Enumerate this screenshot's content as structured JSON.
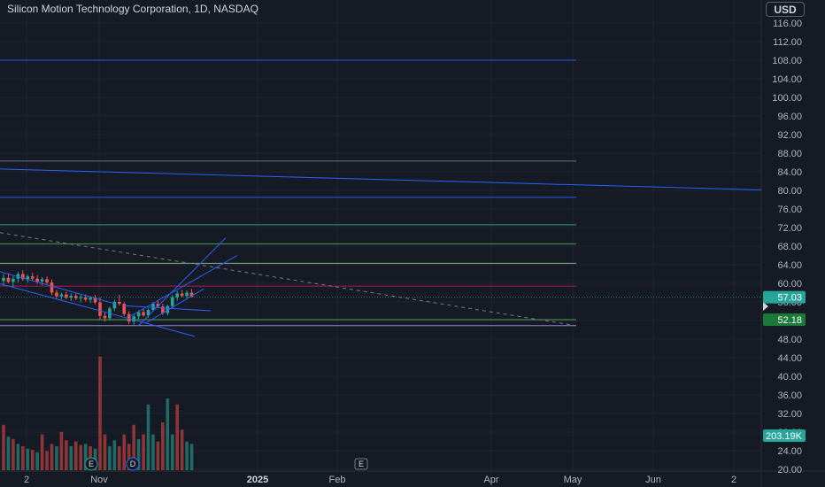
{
  "header": {
    "title": "Silicon Motion Technology Corporation, 1D, NASDAQ",
    "currency_button": "USD"
  },
  "chart_data": {
    "type": "candlestick",
    "symbol": "Silicon Motion Technology Corporation",
    "interval": "1D",
    "exchange": "NASDAQ",
    "y_ticks": [
      "116.00",
      "112.00",
      "108.00",
      "104.00",
      "100.00",
      "96.00",
      "92.00",
      "88.00",
      "84.00",
      "80.00",
      "76.00",
      "72.00",
      "68.00",
      "64.00",
      "60.00",
      "56.00",
      "52.00",
      "48.00",
      "44.00",
      "40.00",
      "36.00",
      "32.00",
      "28.00",
      "24.00",
      "20.00"
    ],
    "y_range": [
      20,
      117
    ],
    "x_ticks": [
      {
        "label": "2",
        "bold": false
      },
      {
        "label": "Nov",
        "bold": false
      },
      {
        "label": "2025",
        "bold": true
      },
      {
        "label": "Feb",
        "bold": false
      },
      {
        "label": "Apr",
        "bold": false
      },
      {
        "label": "May",
        "bold": false
      },
      {
        "label": "Jun",
        "bold": false
      },
      {
        "label": "2",
        "bold": false
      }
    ],
    "last_price": {
      "label": "57.03",
      "value": 57.03,
      "color": "#26a69a"
    },
    "level_tag": {
      "label": "52.18",
      "value": 52.18,
      "color": "#1b7a3a"
    },
    "volume_tag": {
      "label": "203.19K",
      "color": "#26a69a"
    },
    "horizontal_levels": [
      {
        "price": 108.0,
        "color": "#2962ff"
      },
      {
        "price": 86.3,
        "color": "#787b86"
      },
      {
        "price": 78.5,
        "color": "#2962ff"
      },
      {
        "price": 72.6,
        "color": "#26a69a"
      },
      {
        "price": 68.5,
        "color": "#4caf50"
      },
      {
        "price": 64.3,
        "color": "#81c784"
      },
      {
        "price": 59.4,
        "color": "#c2185b"
      },
      {
        "price": 52.18,
        "color": "#4caf50"
      },
      {
        "price": 50.9,
        "color": "#9c8fd8"
      }
    ],
    "events": [
      {
        "label": "E",
        "date": "Oct 29"
      },
      {
        "label": "D",
        "date": "Nov 14"
      },
      {
        "label": "E",
        "date": "Feb"
      }
    ],
    "candles": [
      {
        "o": 60.5,
        "h": 62.0,
        "l": 59.5,
        "c": 61.2
      },
      {
        "o": 61.2,
        "h": 62.2,
        "l": 60.0,
        "c": 60.3
      },
      {
        "o": 60.3,
        "h": 61.5,
        "l": 59.2,
        "c": 61.0
      },
      {
        "o": 61.0,
        "h": 62.5,
        "l": 60.2,
        "c": 62.0
      },
      {
        "o": 62.0,
        "h": 62.8,
        "l": 60.5,
        "c": 60.9
      },
      {
        "o": 60.9,
        "h": 61.9,
        "l": 60.1,
        "c": 61.5
      },
      {
        "o": 61.5,
        "h": 62.3,
        "l": 60.6,
        "c": 61.0
      },
      {
        "o": 61.0,
        "h": 61.8,
        "l": 59.9,
        "c": 60.4
      },
      {
        "o": 60.4,
        "h": 61.3,
        "l": 59.6,
        "c": 60.9
      },
      {
        "o": 60.9,
        "h": 61.5,
        "l": 59.8,
        "c": 60.2
      },
      {
        "o": 60.2,
        "h": 60.8,
        "l": 57.5,
        "c": 58.0
      },
      {
        "o": 58.0,
        "h": 58.6,
        "l": 56.8,
        "c": 57.2
      },
      {
        "o": 57.2,
        "h": 58.0,
        "l": 56.5,
        "c": 57.6
      },
      {
        "o": 57.6,
        "h": 58.2,
        "l": 56.6,
        "c": 56.9
      },
      {
        "o": 56.9,
        "h": 57.8,
        "l": 56.2,
        "c": 57.3
      },
      {
        "o": 57.3,
        "h": 57.9,
        "l": 56.4,
        "c": 56.8
      },
      {
        "o": 56.8,
        "h": 57.5,
        "l": 55.9,
        "c": 57.0
      },
      {
        "o": 57.0,
        "h": 57.6,
        "l": 56.1,
        "c": 56.5
      },
      {
        "o": 56.5,
        "h": 57.2,
        "l": 55.8,
        "c": 56.9
      },
      {
        "o": 56.9,
        "h": 57.5,
        "l": 55.5,
        "c": 55.9
      },
      {
        "o": 55.9,
        "h": 57.0,
        "l": 52.2,
        "c": 53.0
      },
      {
        "o": 53.0,
        "h": 53.8,
        "l": 51.8,
        "c": 52.5
      },
      {
        "o": 52.5,
        "h": 55.0,
        "l": 52.0,
        "c": 54.6
      },
      {
        "o": 54.6,
        "h": 56.5,
        "l": 54.0,
        "c": 56.0
      },
      {
        "o": 56.0,
        "h": 57.5,
        "l": 55.2,
        "c": 55.6
      },
      {
        "o": 55.6,
        "h": 55.9,
        "l": 53.0,
        "c": 53.4
      },
      {
        "o": 53.4,
        "h": 54.0,
        "l": 51.2,
        "c": 51.8
      },
      {
        "o": 51.8,
        "h": 53.5,
        "l": 51.0,
        "c": 52.9
      },
      {
        "o": 52.9,
        "h": 54.2,
        "l": 52.3,
        "c": 53.8
      },
      {
        "o": 53.8,
        "h": 54.4,
        "l": 52.8,
        "c": 53.1
      },
      {
        "o": 53.1,
        "h": 54.6,
        "l": 52.6,
        "c": 54.3
      },
      {
        "o": 54.3,
        "h": 56.0,
        "l": 53.9,
        "c": 55.6
      },
      {
        "o": 55.6,
        "h": 56.4,
        "l": 54.8,
        "c": 55.0
      },
      {
        "o": 55.0,
        "h": 55.6,
        "l": 53.2,
        "c": 53.6
      },
      {
        "o": 53.6,
        "h": 55.4,
        "l": 53.1,
        "c": 55.1
      },
      {
        "o": 55.1,
        "h": 57.6,
        "l": 54.6,
        "c": 57.0
      },
      {
        "o": 57.0,
        "h": 58.4,
        "l": 56.3,
        "c": 57.8
      },
      {
        "o": 57.8,
        "h": 58.6,
        "l": 57.0,
        "c": 57.3
      },
      {
        "o": 57.3,
        "h": 58.5,
        "l": 56.8,
        "c": 58.0
      },
      {
        "o": 58.0,
        "h": 58.8,
        "l": 57.0,
        "c": 57.03
      }
    ],
    "volume": [
      {
        "v": 0.38,
        "up": false
      },
      {
        "v": 0.28,
        "up": true
      },
      {
        "v": 0.26,
        "up": false
      },
      {
        "v": 0.22,
        "up": true
      },
      {
        "v": 0.2,
        "up": false
      },
      {
        "v": 0.18,
        "up": true
      },
      {
        "v": 0.17,
        "up": false
      },
      {
        "v": 0.15,
        "up": true
      },
      {
        "v": 0.3,
        "up": false
      },
      {
        "v": 0.16,
        "up": false
      },
      {
        "v": 0.22,
        "up": false
      },
      {
        "v": 0.2,
        "up": true
      },
      {
        "v": 0.32,
        "up": false
      },
      {
        "v": 0.25,
        "up": false
      },
      {
        "v": 0.2,
        "up": true
      },
      {
        "v": 0.24,
        "up": false
      },
      {
        "v": 0.21,
        "up": false
      },
      {
        "v": 0.22,
        "up": true
      },
      {
        "v": 0.2,
        "up": false
      },
      {
        "v": 0.18,
        "up": true
      },
      {
        "v": 0.95,
        "up": false
      },
      {
        "v": 0.3,
        "up": false
      },
      {
        "v": 0.2,
        "up": true
      },
      {
        "v": 0.25,
        "up": true
      },
      {
        "v": 0.2,
        "up": false
      },
      {
        "v": 0.3,
        "up": false
      },
      {
        "v": 0.22,
        "up": false
      },
      {
        "v": 0.38,
        "up": false
      },
      {
        "v": 0.26,
        "up": true
      },
      {
        "v": 0.3,
        "up": false
      },
      {
        "v": 0.55,
        "up": true
      },
      {
        "v": 0.3,
        "up": true
      },
      {
        "v": 0.24,
        "up": false
      },
      {
        "v": 0.4,
        "up": false
      },
      {
        "v": 0.6,
        "up": true
      },
      {
        "v": 0.3,
        "up": true
      },
      {
        "v": 0.55,
        "up": false
      },
      {
        "v": 0.34,
        "up": false
      },
      {
        "v": 0.24,
        "up": true
      },
      {
        "v": 0.22,
        "up": true
      }
    ]
  }
}
